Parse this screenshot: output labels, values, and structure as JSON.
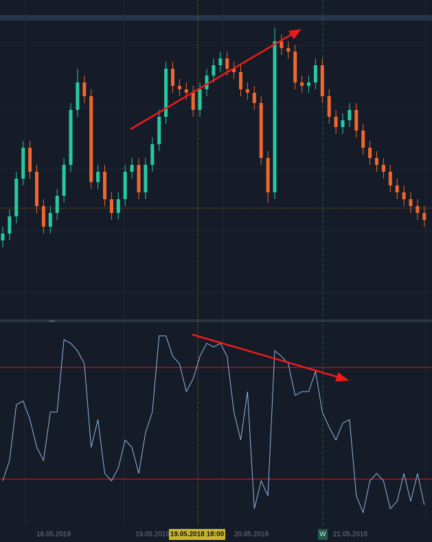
{
  "chart_data": [
    {
      "type": "candlestick",
      "open": [
        120,
        130,
        155,
        210,
        255,
        220,
        170,
        140,
        160,
        185,
        230,
        310,
        350,
        330,
        205,
        220,
        180,
        160,
        180,
        220,
        230,
        190,
        230,
        260,
        300,
        370,
        345,
        340,
        335,
        310,
        340,
        360,
        375,
        385,
        370,
        365,
        340,
        335,
        320,
        240,
        190,
        410,
        400,
        395,
        350,
        345,
        350,
        375,
        330,
        300,
        285,
        295,
        310,
        280,
        255,
        240,
        230,
        220,
        200,
        190,
        180,
        170,
        160
      ],
      "high": [
        140,
        165,
        220,
        265,
        265,
        230,
        180,
        170,
        195,
        240,
        320,
        370,
        360,
        340,
        230,
        230,
        190,
        190,
        230,
        240,
        240,
        240,
        270,
        310,
        380,
        380,
        355,
        350,
        345,
        350,
        370,
        385,
        395,
        395,
        380,
        375,
        350,
        345,
        330,
        250,
        430,
        420,
        410,
        405,
        360,
        360,
        385,
        385,
        340,
        310,
        305,
        320,
        320,
        290,
        265,
        250,
        240,
        230,
        210,
        200,
        190,
        180,
        170
      ],
      "low": [
        110,
        120,
        145,
        200,
        210,
        160,
        130,
        130,
        150,
        175,
        220,
        300,
        320,
        195,
        195,
        170,
        150,
        150,
        170,
        210,
        180,
        180,
        220,
        250,
        290,
        335,
        330,
        325,
        300,
        300,
        330,
        350,
        365,
        360,
        355,
        330,
        325,
        310,
        230,
        175,
        180,
        390,
        385,
        340,
        335,
        335,
        340,
        320,
        290,
        275,
        275,
        285,
        270,
        245,
        230,
        220,
        210,
        190,
        180,
        170,
        160,
        150,
        140
      ],
      "close": [
        130,
        155,
        210,
        255,
        220,
        170,
        140,
        160,
        185,
        230,
        310,
        350,
        330,
        205,
        220,
        180,
        160,
        180,
        220,
        230,
        190,
        230,
        260,
        300,
        370,
        345,
        340,
        335,
        310,
        340,
        360,
        375,
        385,
        370,
        365,
        340,
        335,
        320,
        240,
        190,
        410,
        400,
        395,
        350,
        345,
        350,
        375,
        330,
        300,
        285,
        295,
        310,
        280,
        255,
        240,
        230,
        220,
        200,
        190,
        180,
        170,
        160,
        150
      ],
      "ylim": [
        0,
        470
      ],
      "up_color": "#26c9a0",
      "down_color": "#f0672e"
    },
    {
      "type": "line",
      "values": [
        19,
        30,
        60,
        62,
        52,
        37,
        30,
        56,
        56,
        95,
        93,
        89,
        82,
        37,
        52,
        23,
        19,
        26,
        41,
        37,
        23,
        45,
        56,
        97,
        97,
        86,
        82,
        67,
        74,
        86,
        93,
        91,
        93,
        86,
        56,
        41,
        67,
        4,
        19,
        11,
        89,
        86,
        82,
        65,
        67,
        67,
        78,
        56,
        48,
        41,
        50,
        52,
        11,
        2,
        19,
        23,
        19,
        4,
        8,
        23,
        8,
        23,
        6
      ],
      "ylim": [
        -5,
        104
      ],
      "levels": [
        20,
        80
      ],
      "color": "#8fb8e6",
      "level_color": "#e0141e"
    }
  ],
  "x_axis": {
    "labels": [
      "18.05.2018",
      "19.05.2018",
      "20.05.2018",
      "21.05.2018"
    ],
    "crosshair_label": "19.05.2018 18:00",
    "marker_label": "W"
  }
}
